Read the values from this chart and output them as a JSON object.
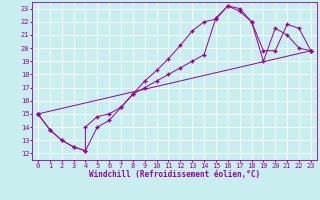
{
  "title": "",
  "xlabel": "Windchill (Refroidissement éolien,°C)",
  "bg_color": "#c8eef0",
  "grid_color": "#ffffff",
  "line_color": "#990099",
  "xlim": [
    -0.5,
    23.5
  ],
  "ylim": [
    11.5,
    23.5
  ],
  "xticks": [
    0,
    1,
    2,
    3,
    4,
    5,
    6,
    7,
    8,
    9,
    10,
    11,
    12,
    13,
    14,
    15,
    16,
    17,
    18,
    19,
    20,
    21,
    22,
    23
  ],
  "yticks": [
    12,
    13,
    14,
    15,
    16,
    17,
    18,
    19,
    20,
    21,
    22,
    23
  ],
  "line1_x": [
    0,
    1,
    2,
    3,
    4,
    4,
    5,
    6,
    7,
    8,
    9,
    10,
    11,
    12,
    13,
    14,
    15,
    16,
    17,
    18,
    19,
    20,
    21,
    22,
    23
  ],
  "line1_y": [
    15,
    13.8,
    13,
    12.5,
    12.2,
    14.0,
    14.8,
    15.0,
    15.5,
    16.5,
    17.0,
    17.5,
    18.0,
    18.5,
    19.0,
    19.5,
    22.3,
    23.2,
    23.0,
    22.0,
    19.0,
    21.5,
    21.0,
    20.0,
    19.8
  ],
  "line2_x": [
    0,
    1,
    2,
    3,
    4,
    5,
    6,
    7,
    8,
    9,
    10,
    11,
    12,
    13,
    14,
    15,
    16,
    17,
    18,
    19,
    20,
    21,
    22,
    23
  ],
  "line2_y": [
    15,
    13.8,
    13,
    12.5,
    12.2,
    14.0,
    14.5,
    15.5,
    16.5,
    17.5,
    18.3,
    19.2,
    20.2,
    21.3,
    22.0,
    22.2,
    23.2,
    22.8,
    22.0,
    19.8,
    19.8,
    21.8,
    21.5,
    19.8
  ],
  "line3_x": [
    0,
    23
  ],
  "line3_y": [
    15,
    19.8
  ],
  "xlabel_fontsize": 5.5,
  "tick_fontsize": 5.0,
  "lw": 0.7,
  "marker_size": 2.5
}
